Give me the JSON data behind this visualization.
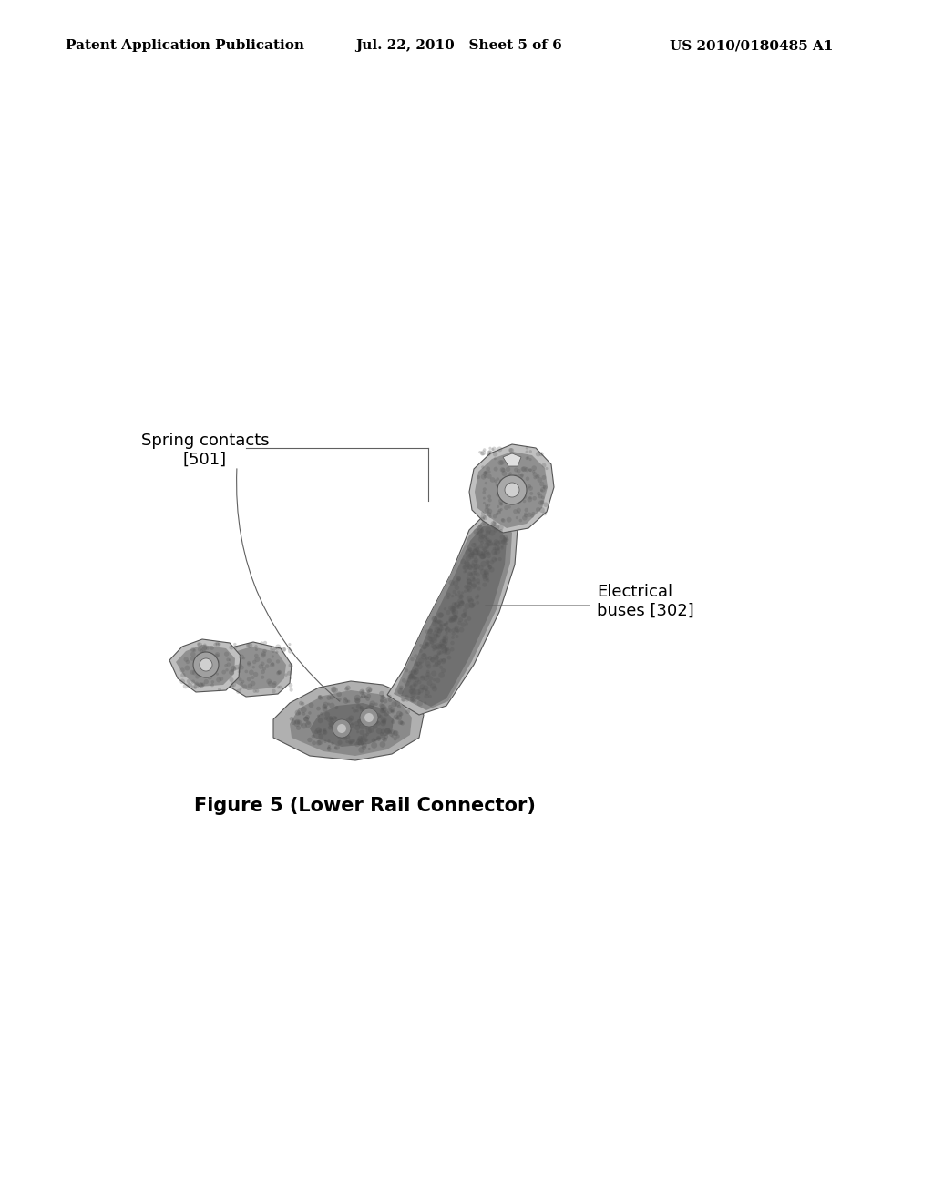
{
  "header_left": "Patent Application Publication",
  "header_mid": "Jul. 22, 2010   Sheet 5 of 6",
  "header_right": "US 2010/0180485 A1",
  "figure_caption": "Figure 5 (Lower Rail Connector)",
  "label_spring": "Spring contacts\n[501]",
  "label_electrical": "Electrical\nbuses [302]",
  "background_color": "#ffffff",
  "text_color": "#000000",
  "header_fontsize": 11,
  "caption_fontsize": 15,
  "label_fontsize": 13,
  "component_color_light": "#c8c8c8",
  "component_color_mid": "#999999",
  "component_color_dark": "#666666",
  "component_color_darkest": "#444444",
  "component_edge": "#555555"
}
